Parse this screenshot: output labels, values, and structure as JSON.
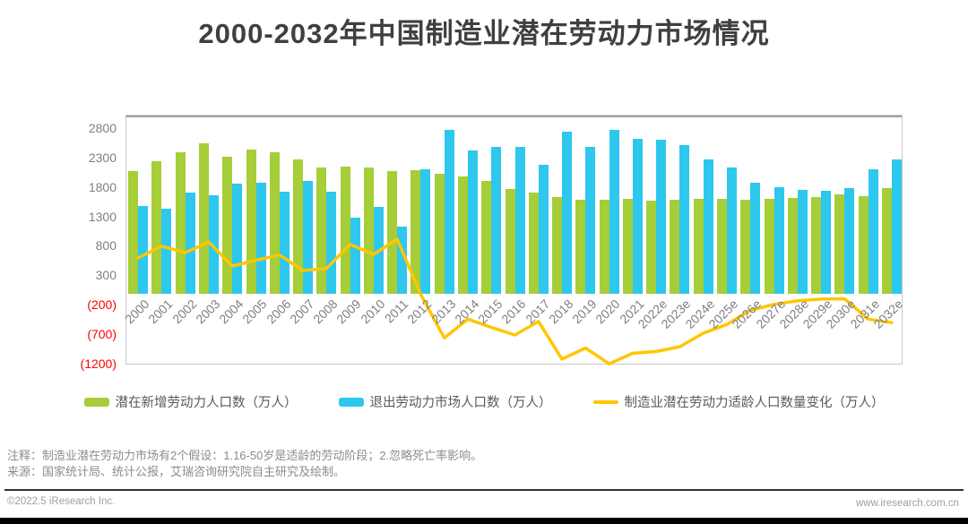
{
  "page": {
    "title": "2000-2032年中国制造业潜在劳动力市场情况"
  },
  "chart_data": {
    "type": "bar",
    "title": "2000-2032年中国制造业潜在劳动力市场情况",
    "categories": [
      "2000",
      "2001",
      "2002",
      "2003",
      "2004",
      "2005",
      "2006",
      "2007",
      "2008",
      "2009",
      "2010",
      "2011",
      "2012",
      "2013",
      "2014",
      "2015",
      "2016",
      "2017",
      "2018",
      "2019",
      "2020",
      "2021",
      "2022e",
      "2023e",
      "2024e",
      "2025e",
      "2026e",
      "2027e",
      "2028e",
      "2029e",
      "2030e",
      "2031e",
      "2032e"
    ],
    "series": [
      {
        "name": "潜在新增劳动力人口数（万人）",
        "type": "bar",
        "color": "#a5ce38",
        "values": [
          2080,
          2250,
          2410,
          2560,
          2330,
          2450,
          2410,
          2280,
          2150,
          2160,
          2150,
          2080,
          2100,
          2040,
          2000,
          1910,
          1780,
          1720,
          1650,
          1600,
          1600,
          1610,
          1580,
          1600,
          1610,
          1610,
          1600,
          1610,
          1630,
          1640,
          1690,
          1660,
          1790
        ]
      },
      {
        "name": "退出劳动力市场人口数（万人）",
        "type": "bar",
        "color": "#2ec7ee",
        "values": [
          1490,
          1440,
          1720,
          1670,
          1870,
          1880,
          1740,
          1920,
          1730,
          1300,
          1470,
          1140,
          2110,
          2780,
          2430,
          2500,
          2490,
          2190,
          2760,
          2500,
          2790,
          2630,
          2620,
          2520,
          2280,
          2140,
          1890,
          1810,
          1760,
          1750,
          1790,
          2110,
          2280
        ]
      },
      {
        "name": "制造业潜在劳动力适龄人口数量变化（万人）",
        "type": "line",
        "color": "#ffc600",
        "values": [
          610,
          810,
          700,
          880,
          470,
          570,
          660,
          395,
          430,
          840,
          670,
          930,
          -10,
          -750,
          -430,
          -570,
          -700,
          -470,
          -1110,
          -920,
          -1190,
          -1010,
          -980,
          -900,
          -670,
          -520,
          -280,
          -180,
          -120,
          -90,
          -85,
          -430,
          -490
        ]
      }
    ],
    "ylabel": "",
    "xlabel": "",
    "y_ticks": [
      2800,
      2300,
      1800,
      1300,
      800,
      300,
      -200,
      -700,
      -1200
    ],
    "ylim": [
      -1216,
      3029
    ],
    "grid": false,
    "legend_position": "bottom",
    "tick_color": "#808080",
    "negative_tick_color": "#ff0000",
    "negative_tick_format": "parentheses"
  },
  "notes": {
    "line1": "注释：制造业潜在劳动力市场有2个假设：1.16-50岁是适龄的劳动阶段；2.忽略死亡率影响。",
    "line2": "来源：国家统计局、统计公报，艾瑞咨询研究院自主研究及绘制。"
  },
  "footer": {
    "left": "©2022.5 iResearch Inc.",
    "right": "www.iresearch.com.cn"
  }
}
